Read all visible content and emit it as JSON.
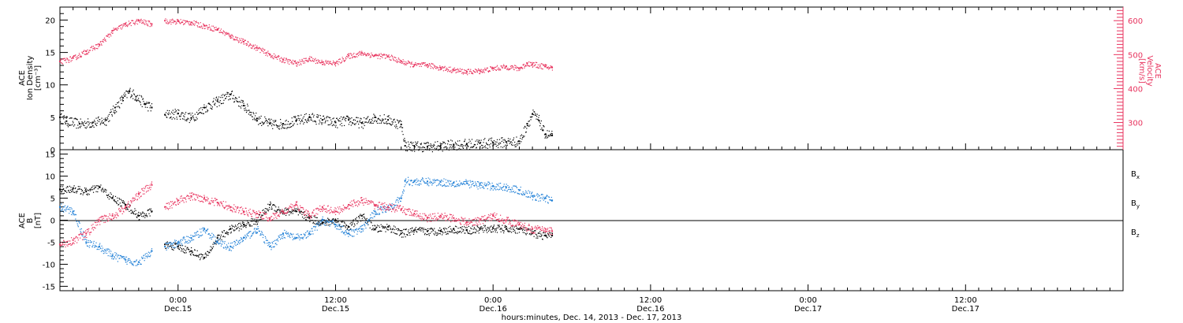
{
  "title_line": "hours:minutes, Dec. 14, 2013 - Dec. 17, 2013",
  "colors": {
    "black": "#000000",
    "pink": "#e8335e",
    "blue": "#1f7fd6"
  },
  "x_ticks": [
    {
      "time": "0:00",
      "date": "Dec.15",
      "t": 24
    },
    {
      "time": "12:00",
      "date": "Dec.15",
      "t": 36
    },
    {
      "time": "0:00",
      "date": "Dec.16",
      "t": 48
    },
    {
      "time": "12:00",
      "date": "Dec.16",
      "t": 60
    },
    {
      "time": "0:00",
      "date": "Dec.17",
      "t": 72
    },
    {
      "time": "12:00",
      "date": "Dec.17",
      "t": 84
    }
  ],
  "chart_data": [
    {
      "type": "scatter",
      "panel": "top",
      "xlabel": "hours:minutes, Dec. 14, 2013 - Dec. 17, 2013",
      "xlim": [
        15,
        96
      ],
      "ylabel_left": [
        "ACE",
        "Ion Density",
        "[cm⁻³]"
      ],
      "ylim_left": [
        0,
        22
      ],
      "yticks_left": [
        0,
        5,
        10,
        15,
        20
      ],
      "ylabel_right": [
        "ACE",
        "Velocity",
        "[km/s]"
      ],
      "ylim_right": [
        220,
        640
      ],
      "yticks_right": [
        300,
        400,
        500,
        600
      ],
      "series": [
        {
          "name": "",
          "color": "black",
          "axis": "left",
          "points": [
            [
              15,
              5.0
            ],
            [
              15.5,
              4.4
            ],
            [
              16.5,
              4.0
            ],
            [
              17.5,
              4.2
            ],
            [
              18.5,
              4.6
            ],
            [
              19.2,
              6.5
            ],
            [
              19.8,
              8.0
            ],
            [
              20.3,
              9.0
            ],
            [
              20.8,
              8.2
            ],
            [
              21.5,
              7.0
            ],
            [
              22,
              6.5
            ],
            [
              23,
              5.4
            ],
            [
              24,
              5.6
            ],
            [
              25,
              4.9
            ],
            [
              26,
              6.5
            ],
            [
              27,
              7.5
            ],
            [
              28,
              8.5
            ],
            [
              29,
              6.8
            ],
            [
              30,
              4.8
            ],
            [
              31,
              4.0
            ],
            [
              32,
              4.0
            ],
            [
              33,
              4.5
            ],
            [
              34,
              5.0
            ],
            [
              35,
              4.6
            ],
            [
              36,
              4.2
            ],
            [
              37,
              4.6
            ],
            [
              38,
              4.1
            ],
            [
              39,
              5.0
            ],
            [
              40,
              4.6
            ],
            [
              41,
              3.9
            ],
            [
              41.3,
              0.6
            ],
            [
              42,
              0.6
            ],
            [
              43,
              0.5
            ],
            [
              44,
              0.6
            ],
            [
              45,
              0.8
            ],
            [
              46,
              0.9
            ],
            [
              47,
              1.0
            ],
            [
              48,
              1.1
            ],
            [
              49,
              1.2
            ],
            [
              50,
              1.3
            ],
            [
              50.6,
              4.0
            ],
            [
              51,
              5.5
            ],
            [
              51.5,
              4.5
            ],
            [
              51.8,
              3.0
            ],
            [
              52,
              2.4
            ],
            [
              52.5,
              2.2
            ]
          ]
        },
        {
          "name": "",
          "color": "pink",
          "axis": "right",
          "points": [
            [
              15,
              480
            ],
            [
              16,
              490
            ],
            [
              17,
              510
            ],
            [
              18,
              530
            ],
            [
              19,
              570
            ],
            [
              20,
              590
            ],
            [
              21,
              600
            ],
            [
              22,
              590
            ],
            [
              23,
              600
            ],
            [
              24,
              598
            ],
            [
              25,
              595
            ],
            [
              26,
              585
            ],
            [
              27,
              575
            ],
            [
              28,
              555
            ],
            [
              29,
              538
            ],
            [
              30,
              520
            ],
            [
              31,
              500
            ],
            [
              32,
              485
            ],
            [
              33,
              475
            ],
            [
              34,
              488
            ],
            [
              35,
              478
            ],
            [
              36,
              475
            ],
            [
              37,
              497
            ],
            [
              38,
              505
            ],
            [
              39,
              498
            ],
            [
              40,
              495
            ],
            [
              41,
              480
            ],
            [
              42,
              470
            ],
            [
              43,
              470
            ],
            [
              44,
              462
            ],
            [
              45,
              455
            ],
            [
              46,
              450
            ],
            [
              47,
              453
            ],
            [
              48,
              460
            ],
            [
              49,
              465
            ],
            [
              50,
              460
            ],
            [
              50.6,
              475
            ],
            [
              51,
              472
            ],
            [
              52,
              465
            ],
            [
              52.5,
              462
            ]
          ]
        }
      ]
    },
    {
      "type": "scatter",
      "panel": "bottom",
      "xlabel": "hours:minutes, Dec. 14, 2013 - Dec. 17, 2013",
      "xlim": [
        15,
        96
      ],
      "ylabel_left": [
        "ACE",
        "B",
        "[nT]"
      ],
      "ylim_left": [
        -16,
        16
      ],
      "yticks_left": [
        -15,
        -10,
        -5,
        0,
        5,
        10,
        15
      ],
      "zero_line": true,
      "legend_position": "right",
      "series": [
        {
          "name": "Bx",
          "color": "black",
          "points": [
            [
              15,
              7.0
            ],
            [
              16,
              7.2
            ],
            [
              17,
              6.5
            ],
            [
              18,
              7.5
            ],
            [
              19,
              5.0
            ],
            [
              20,
              3.5
            ],
            [
              21,
              1.0
            ],
            [
              22,
              2.0
            ],
            [
              23,
              -5.5
            ],
            [
              24,
              -6.0
            ],
            [
              25,
              -7.0
            ],
            [
              26,
              -8.5
            ],
            [
              27,
              -4.0
            ],
            [
              28,
              -2.0
            ],
            [
              29,
              -1.0
            ],
            [
              30,
              0.0
            ],
            [
              31,
              3.5
            ],
            [
              32,
              2.0
            ],
            [
              33,
              2.0
            ],
            [
              34,
              0.5
            ],
            [
              35,
              -0.5
            ],
            [
              36,
              0.0
            ],
            [
              37,
              -1.5
            ],
            [
              38,
              1.0
            ],
            [
              39,
              -2.0
            ],
            [
              40,
              -1.5
            ],
            [
              41,
              -3.0
            ],
            [
              42,
              -2.3
            ],
            [
              43,
              -2.5
            ],
            [
              44,
              -2.4
            ],
            [
              45,
              -2.0
            ],
            [
              46,
              -2.2
            ],
            [
              47,
              -2.0
            ],
            [
              48,
              -1.8
            ],
            [
              49,
              -2.0
            ],
            [
              50,
              -2.0
            ],
            [
              51,
              -3.0
            ],
            [
              52,
              -3.5
            ],
            [
              52.5,
              -3.5
            ]
          ]
        },
        {
          "name": "By",
          "color": "blue",
          "points": [
            [
              15,
              3.0
            ],
            [
              16,
              2.0
            ],
            [
              17,
              -5.0
            ],
            [
              18,
              -6.0
            ],
            [
              19,
              -8.0
            ],
            [
              20,
              -9.0
            ],
            [
              21,
              -9.5
            ],
            [
              22,
              -7.0
            ],
            [
              23,
              -6.0
            ],
            [
              24,
              -5.0
            ],
            [
              25,
              -4.0
            ],
            [
              26,
              -2.0
            ],
            [
              27,
              -5.0
            ],
            [
              28,
              -6.0
            ],
            [
              29,
              -4.0
            ],
            [
              30,
              -2.0
            ],
            [
              31,
              -6.0
            ],
            [
              32,
              -3.0
            ],
            [
              33,
              -4.0
            ],
            [
              34,
              -3.0
            ],
            [
              35,
              0.0
            ],
            [
              36,
              -1.0
            ],
            [
              37,
              -3.0
            ],
            [
              38,
              -2.0
            ],
            [
              39,
              2.0
            ],
            [
              40,
              3.0
            ],
            [
              41,
              5.0
            ],
            [
              41.3,
              9.0
            ],
            [
              42,
              8.8
            ],
            [
              43,
              8.8
            ],
            [
              44,
              8.7
            ],
            [
              45,
              8.5
            ],
            [
              46,
              8.4
            ],
            [
              47,
              8.0
            ],
            [
              48,
              7.8
            ],
            [
              49,
              7.5
            ],
            [
              50,
              6.8
            ],
            [
              51,
              5.5
            ],
            [
              52,
              5.0
            ],
            [
              52.5,
              4.5
            ]
          ]
        },
        {
          "name": "Bz",
          "color": "pink",
          "points": [
            [
              15,
              -5.5
            ],
            [
              16,
              -4.5
            ],
            [
              17,
              -3.0
            ],
            [
              18,
              0.0
            ],
            [
              19,
              1.0
            ],
            [
              20,
              3.0
            ],
            [
              21,
              6.0
            ],
            [
              22,
              8.0
            ],
            [
              23,
              3.0
            ],
            [
              24,
              4.5
            ],
            [
              25,
              5.5
            ],
            [
              26,
              5.0
            ],
            [
              27,
              4.0
            ],
            [
              28,
              3.0
            ],
            [
              29,
              2.0
            ],
            [
              30,
              1.5
            ],
            [
              31,
              0.5
            ],
            [
              32,
              2.0
            ],
            [
              33,
              3.5
            ],
            [
              34,
              1.0
            ],
            [
              35,
              3.0
            ],
            [
              36,
              2.0
            ],
            [
              37,
              3.5
            ],
            [
              38,
              4.5
            ],
            [
              39,
              3.5
            ],
            [
              40,
              3.0
            ],
            [
              41,
              2.5
            ],
            [
              42,
              1.5
            ],
            [
              43,
              0.5
            ],
            [
              44,
              1.0
            ],
            [
              45,
              0.5
            ],
            [
              46,
              -0.5
            ],
            [
              47,
              0.0
            ],
            [
              48,
              1.0
            ],
            [
              49,
              0.0
            ],
            [
              50,
              -1.0
            ],
            [
              51,
              -2.0
            ],
            [
              52,
              -2.0
            ],
            [
              52.5,
              -2.5
            ]
          ]
        }
      ]
    }
  ]
}
